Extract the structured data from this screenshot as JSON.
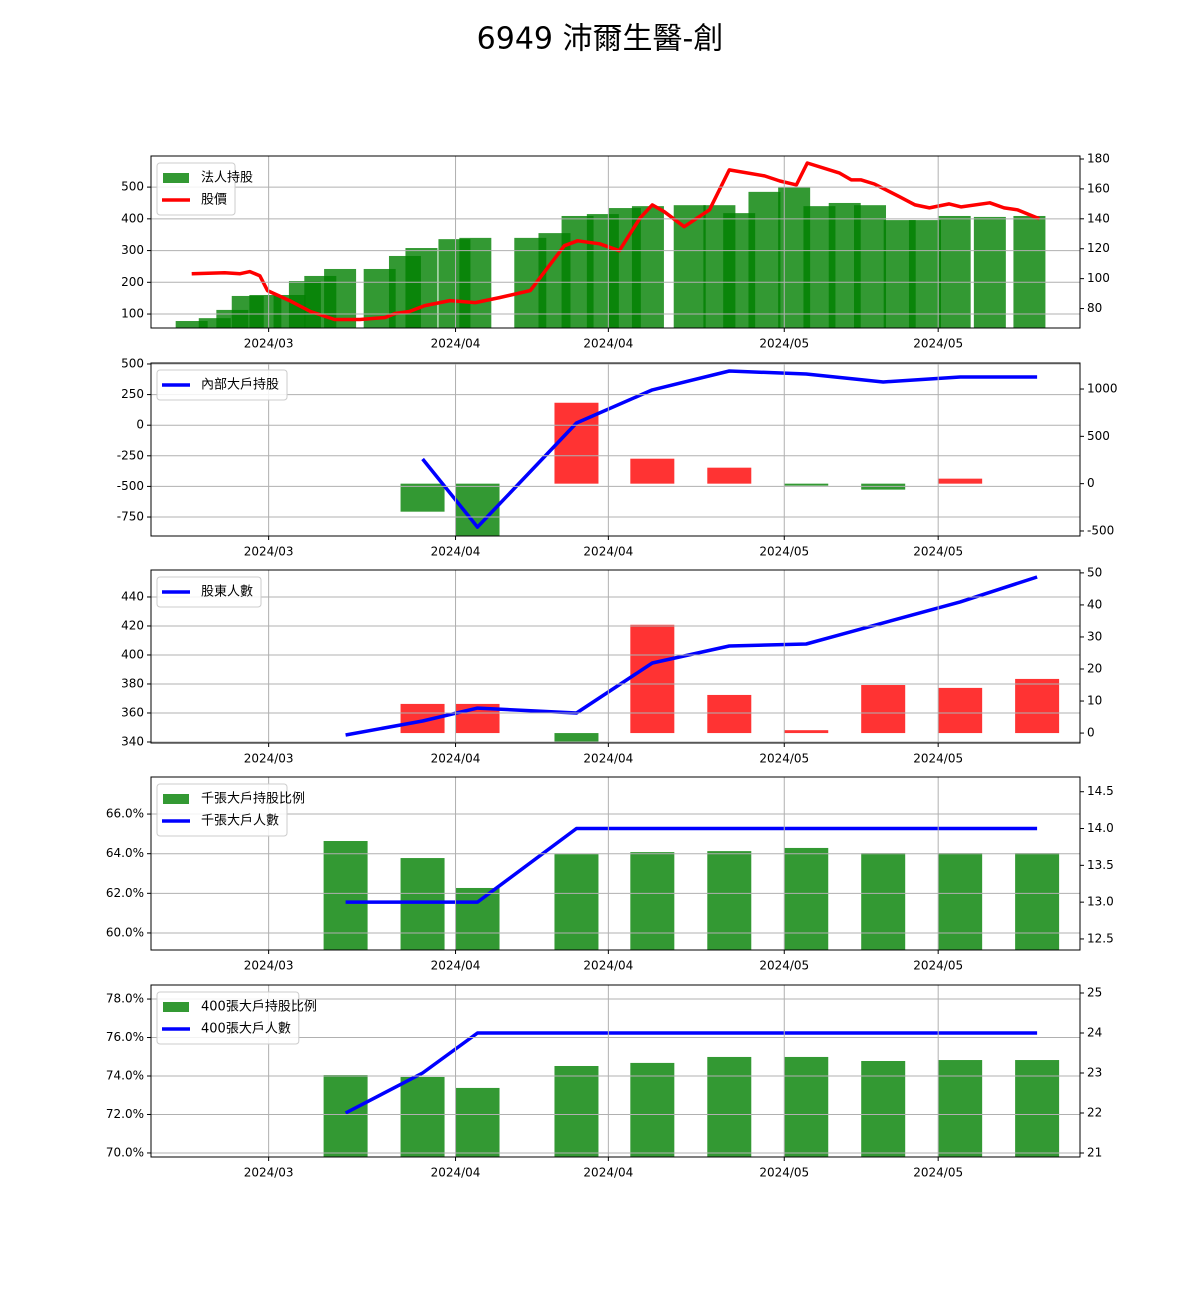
{
  "title": "6949 沛爾生醫-創",
  "chart_data": [
    {
      "type": "combo",
      "grid": true,
      "legend": "upper left",
      "xlim": [
        0,
        84.5
      ],
      "xticks": [
        {
          "value": 10.7,
          "label": "2024/03"
        },
        {
          "value": 27.7,
          "label": "2024/04"
        },
        {
          "value": 41.6,
          "label": "2024/04"
        },
        {
          "value": 57.6,
          "label": "2024/05"
        },
        {
          "value": 71.6,
          "label": "2024/05"
        }
      ],
      "ylim": [
        56,
        598
      ],
      "yticks": [
        100,
        200,
        300,
        400,
        500
      ],
      "y2lim": [
        67,
        182
      ],
      "y2ticks": [
        80,
        100,
        120,
        140,
        160,
        180
      ],
      "series": [
        {
          "name": "法人持股",
          "type": "bar",
          "color": "#008000",
          "x": [
            3.7,
            5.8,
            7.4,
            8.8,
            10.4,
            12.6,
            14.0,
            15.4,
            17.2,
            20.8,
            23.1,
            24.6,
            27.6,
            29.5,
            34.5,
            36.7,
            38.8,
            41.1,
            43.1,
            45.2,
            49.0,
            51.7,
            53.5,
            55.8,
            58.5,
            60.8,
            63.1,
            65.4,
            68.1,
            70.4,
            73.1,
            76.3,
            79.9
          ],
          "values": [
            78,
            87,
            113,
            157,
            160,
            160,
            204,
            220,
            242,
            242,
            283,
            308,
            336,
            340,
            340,
            355,
            409,
            415,
            434,
            440,
            443,
            443,
            418,
            485,
            500,
            440,
            450,
            443,
            396,
            396,
            409,
            406,
            409
          ]
        },
        {
          "name": "股價",
          "type": "line",
          "axis": "y2",
          "color": "#ff0000",
          "x": [
            3.7,
            6.7,
            8.1,
            9.0,
            9.9,
            10.6,
            12.6,
            14.5,
            16.7,
            19.0,
            21.3,
            22.2,
            23.5,
            24.9,
            27.2,
            29.5,
            31.7,
            34.5,
            37.6,
            38.8,
            40.8,
            42.6,
            44.5,
            45.6,
            46.7,
            48.5,
            50.8,
            52.6,
            55.8,
            57.2,
            58.7,
            59.7,
            62.6,
            63.7,
            64.6,
            65.8,
            68.1,
            69.5,
            70.8,
            72.6,
            73.7,
            76.3,
            77.6,
            78.8,
            80.8
          ],
          "values": [
            103.3,
            104,
            103.3,
            104.7,
            102,
            92,
            85.3,
            78,
            72.7,
            72.7,
            74,
            76.7,
            78,
            82,
            85.3,
            84,
            87.3,
            92,
            122,
            125.3,
            123.3,
            118.7,
            140.7,
            149.3,
            144.7,
            134.7,
            146,
            172.7,
            168.7,
            165.3,
            162.7,
            177.3,
            170.7,
            166,
            166,
            163.3,
            154.7,
            149.3,
            147.3,
            150,
            148,
            150.7,
            147.3,
            146,
            140
          ]
        }
      ]
    },
    {
      "type": "combo",
      "grid": true,
      "legend": "upper left",
      "xlim": [
        0,
        84.5
      ],
      "xticks": [
        {
          "value": 10.7,
          "label": "2024/03"
        },
        {
          "value": 27.7,
          "label": "2024/04"
        },
        {
          "value": 41.6,
          "label": "2024/04"
        },
        {
          "value": 57.6,
          "label": "2024/05"
        },
        {
          "value": 71.6,
          "label": "2024/05"
        }
      ],
      "ylim": [
        -905,
        508
      ],
      "yticks": [
        -750,
        -500,
        -250,
        0,
        250,
        500
      ],
      "y2lim": [
        -553,
        1275
      ],
      "y2ticks": [
        -500,
        0,
        500,
        1000
      ],
      "series": [
        {
          "type": "bar",
          "axis": "y2",
          "color": "#ff0000",
          "negative_color": "#008000",
          "x": [
            24.7,
            29.7,
            38.7,
            45.6,
            52.6,
            59.6,
            66.6,
            73.6
          ],
          "values": [
            -296,
            -650,
            855,
            264,
            169,
            -21,
            -63,
            53
          ]
        },
        {
          "name": "內部大戶持股",
          "type": "line",
          "color": "#0000ff",
          "x": [
            24.7,
            29.7,
            38.7,
            45.6,
            52.6,
            59.6,
            66.6,
            73.6,
            80.6
          ],
          "values": [
            -276,
            -832,
            18,
            288,
            443,
            418,
            353,
            394,
            394
          ]
        }
      ]
    },
    {
      "type": "combo",
      "grid": true,
      "legend": "upper left",
      "xlim": [
        0,
        84.5
      ],
      "xticks": [
        {
          "value": 10.7,
          "label": "2024/03"
        },
        {
          "value": 27.7,
          "label": "2024/04"
        },
        {
          "value": 41.6,
          "label": "2024/04"
        },
        {
          "value": 57.6,
          "label": "2024/05"
        },
        {
          "value": 71.6,
          "label": "2024/05"
        }
      ],
      "ylim": [
        339.3,
        458.6
      ],
      "yticks": [
        340,
        360,
        380,
        400,
        420,
        440
      ],
      "y2lim": [
        -3.1,
        50.9
      ],
      "y2ticks": [
        0,
        10,
        20,
        30,
        40,
        50
      ],
      "series": [
        {
          "type": "bar",
          "axis": "y2",
          "color": "#ff0000",
          "negative_color": "#008000",
          "x": [
            24.7,
            29.7,
            38.7,
            45.6,
            52.6,
            59.6,
            66.6,
            73.6,
            80.6
          ],
          "values": [
            9.1,
            9.1,
            -2.8,
            33.8,
            11.9,
            0.9,
            15,
            14.1,
            16.9
          ]
        },
        {
          "name": "股東人數",
          "type": "line",
          "color": "#0000ff",
          "x": [
            17.7,
            24.7,
            29.7,
            38.7,
            45.6,
            52.6,
            59.6,
            66.6,
            73.6,
            80.6
          ],
          "values": [
            344.8,
            354.5,
            363.4,
            360,
            394.5,
            406.2,
            407.6,
            422.1,
            436.6,
            453.8
          ]
        }
      ]
    },
    {
      "type": "combo",
      "grid": true,
      "legend": "upper left",
      "xlim": [
        0,
        84.5
      ],
      "xticks": [
        {
          "value": 10.7,
          "label": "2024/03"
        },
        {
          "value": 27.7,
          "label": "2024/04"
        },
        {
          "value": 41.6,
          "label": "2024/04"
        },
        {
          "value": 57.6,
          "label": "2024/05"
        },
        {
          "value": 71.6,
          "label": "2024/05"
        }
      ],
      "ylim": [
        59.14,
        67.87
      ],
      "yticks": [
        {
          "value": 60,
          "label": "60.0%"
        },
        {
          "value": 62,
          "label": "62.0%"
        },
        {
          "value": 64,
          "label": "64.0%"
        },
        {
          "value": 66,
          "label": "66.0%"
        }
      ],
      "y2lim": [
        12.35,
        14.7
      ],
      "y2ticks": [
        12.5,
        {
          "value": 13,
          "label": "13.0"
        },
        13.5,
        {
          "value": 14,
          "label": "14.0"
        },
        14.5
      ],
      "series": [
        {
          "name": "千張大戶持股比例",
          "type": "bar",
          "color": "#008000",
          "x": [
            17.7,
            24.7,
            29.7,
            38.7,
            45.6,
            52.6,
            59.6,
            66.6,
            73.6,
            80.6
          ],
          "values": [
            64.64,
            63.78,
            62.27,
            63.98,
            64.08,
            64.13,
            64.29,
            64.03,
            64.03,
            64.03
          ]
        },
        {
          "name": "千張大戶人數",
          "type": "line",
          "axis": "y2",
          "color": "#0000ff",
          "x": [
            17.7,
            24.7,
            29.7,
            38.7,
            45.6,
            52.6,
            59.6,
            66.6,
            73.6,
            80.6
          ],
          "values": [
            13,
            13,
            13,
            14,
            14,
            14,
            14,
            14,
            14,
            14
          ]
        }
      ]
    },
    {
      "type": "combo",
      "grid": true,
      "legend": "upper left",
      "xlim": [
        0,
        84.5
      ],
      "xticks": [
        {
          "value": 10.7,
          "label": "2024/03"
        },
        {
          "value": 27.7,
          "label": "2024/04"
        },
        {
          "value": 41.6,
          "label": "2024/04"
        },
        {
          "value": 57.6,
          "label": "2024/05"
        },
        {
          "value": 71.6,
          "label": "2024/05"
        }
      ],
      "ylim": [
        69.79,
        78.73
      ],
      "yticks": [
        {
          "value": 70,
          "label": "70.0%"
        },
        {
          "value": 72,
          "label": "72.0%"
        },
        {
          "value": 74,
          "label": "74.0%"
        },
        {
          "value": 76,
          "label": "76.0%"
        },
        {
          "value": 78,
          "label": "78.0%"
        }
      ],
      "y2lim": [
        20.9,
        25.2
      ],
      "y2ticks": [
        21,
        22,
        23,
        24,
        25
      ],
      "series": [
        {
          "name": "400張大戶持股比例",
          "type": "bar",
          "color": "#008000",
          "x": [
            17.7,
            24.7,
            29.7,
            38.7,
            45.6,
            52.6,
            59.6,
            66.6,
            73.6,
            80.6
          ],
          "values": [
            74.05,
            73.95,
            73.38,
            74.52,
            74.68,
            74.99,
            74.99,
            74.78,
            74.83,
            74.83
          ]
        },
        {
          "name": "400張大戶人數",
          "type": "line",
          "axis": "y2",
          "color": "#0000ff",
          "x": [
            17.7,
            24.7,
            29.7,
            38.7,
            45.6,
            52.6,
            59.6,
            66.6,
            73.6,
            80.6
          ],
          "values": [
            22,
            23,
            24,
            24,
            24,
            24,
            24,
            24,
            24,
            24
          ]
        }
      ]
    }
  ]
}
